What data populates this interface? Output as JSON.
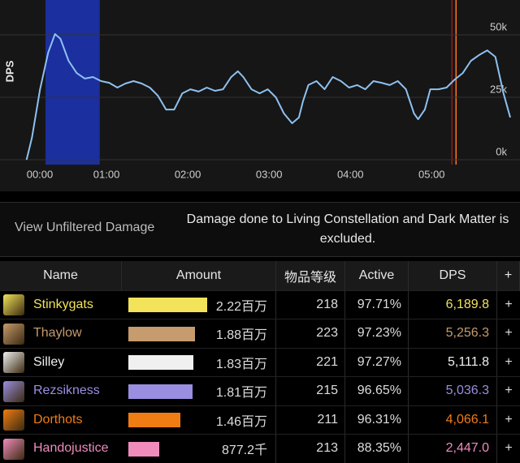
{
  "chart_data": {
    "type": "line",
    "y_label": "DPS",
    "color": "#8ec1f0",
    "grid": true,
    "x": [
      1,
      5,
      11,
      17,
      22,
      26,
      32,
      38,
      44,
      50,
      56,
      62,
      68,
      74,
      80,
      86,
      92,
      98,
      104,
      110,
      116,
      122,
      128,
      134,
      140,
      146,
      152,
      157,
      161,
      167,
      173,
      179,
      185,
      191,
      197,
      202,
      205,
      209,
      215,
      221,
      227,
      233,
      239,
      245,
      251,
      257,
      263,
      269,
      275,
      281,
      287,
      290,
      295,
      299,
      305,
      311,
      317,
      323,
      329,
      335,
      341,
      347,
      353,
      358
    ],
    "values": [
      0,
      8800,
      28200,
      42900,
      50300,
      48400,
      39600,
      34700,
      32500,
      33100,
      31500,
      30800,
      28900,
      30500,
      31500,
      30500,
      28900,
      25600,
      20100,
      20100,
      26600,
      28200,
      27300,
      28900,
      27600,
      28200,
      33100,
      35400,
      33100,
      28200,
      26600,
      28200,
      25000,
      18500,
      14600,
      16900,
      23400,
      29900,
      31500,
      28200,
      33100,
      31500,
      28900,
      29900,
      28200,
      31500,
      30800,
      29900,
      31500,
      28200,
      18500,
      16200,
      20100,
      28200,
      28200,
      28900,
      32100,
      34700,
      39600,
      41900,
      43800,
      41200,
      26600,
      16900
    ],
    "xlim": [
      0,
      358
    ],
    "xticks": [
      {
        "value": 0,
        "label": "00:00"
      },
      {
        "value": 60,
        "label": "01:00"
      },
      {
        "value": 120,
        "label": "02:00"
      },
      {
        "value": 180,
        "label": "03:00"
      },
      {
        "value": 240,
        "label": "04:00"
      },
      {
        "value": 300,
        "label": "05:00"
      }
    ],
    "ylim": [
      0,
      62000
    ],
    "yticks": [
      {
        "value": 0,
        "label": "0k"
      },
      {
        "value": 25000,
        "label": "25k"
      },
      {
        "value": 50000,
        "label": "50k"
      }
    ],
    "highlight": [
      15,
      55
    ],
    "highlight_color": "#1c2f9e",
    "markers": [
      {
        "value": 315,
        "color": "#8b1e1e"
      },
      {
        "value": 318,
        "color": "#ff7a1a"
      }
    ]
  },
  "notice": {
    "link": "View Unfiltered Damage",
    "text": "Damage done to Living Constellation and Dark Matter is excluded."
  },
  "table": {
    "columns": [
      "Name",
      "Amount",
      "物品等级",
      "Active",
      "DPS",
      "+"
    ],
    "rows": [
      {
        "name": "Stinkygats",
        "color": "#f2e35a",
        "amount": 2220000,
        "amount_label": "2.22百万",
        "ilvl": "218",
        "active": "97.71%",
        "dps": "6,189.8",
        "add": "+"
      },
      {
        "name": "Thaylow",
        "color": "#c69b6d",
        "amount": 1880000,
        "amount_label": "1.88百万",
        "ilvl": "223",
        "active": "97.23%",
        "dps": "5,256.3",
        "add": "+"
      },
      {
        "name": "Silley",
        "color": "#f0f0f0",
        "amount": 1830000,
        "amount_label": "1.83百万",
        "ilvl": "221",
        "active": "97.27%",
        "dps": "5,111.8",
        "add": "+"
      },
      {
        "name": "Rezsikness",
        "color": "#9a8ee0",
        "amount": 1810000,
        "amount_label": "1.81百万",
        "ilvl": "215",
        "active": "96.65%",
        "dps": "5,036.3",
        "add": "+"
      },
      {
        "name": "Dorthots",
        "color": "#f07c14",
        "amount": 1460000,
        "amount_label": "1.46百万",
        "ilvl": "211",
        "active": "96.31%",
        "dps": "4,066.1",
        "add": "+"
      },
      {
        "name": "Handojustice",
        "color": "#ef8cbc",
        "amount": 877200,
        "amount_label": "877.2千",
        "ilvl": "213",
        "active": "88.35%",
        "dps": "2,447.0",
        "add": "+"
      }
    ]
  }
}
